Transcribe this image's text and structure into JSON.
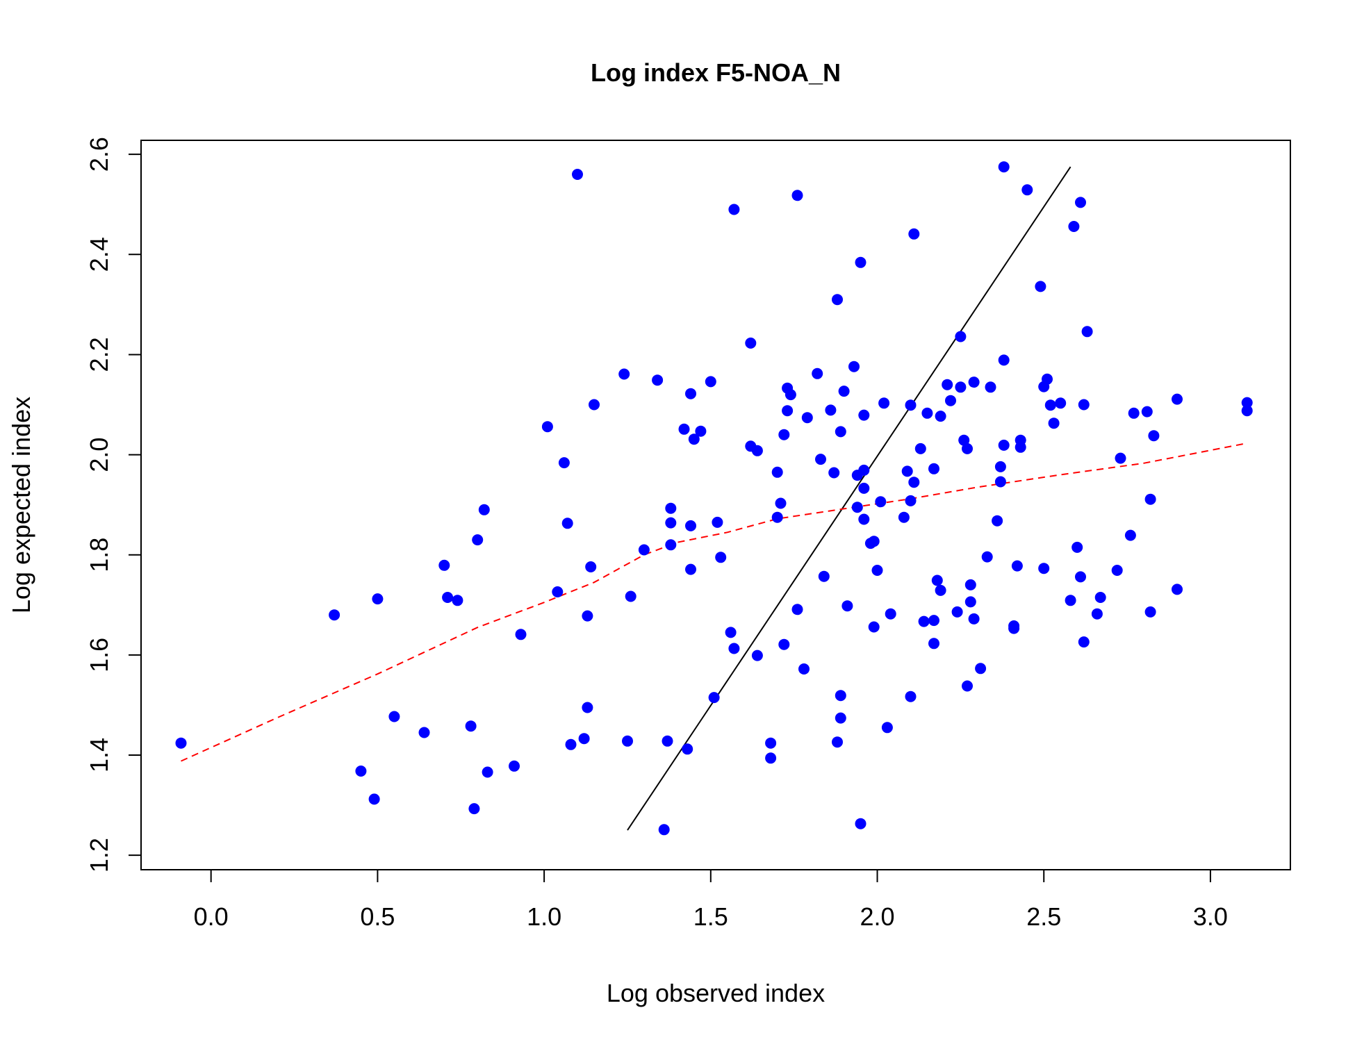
{
  "chart_data": {
    "type": "scatter",
    "title": "Log index F5-NOA_N",
    "xlabel": "Log observed index",
    "ylabel": "Log expected index",
    "xlim": [
      -0.21,
      3.24
    ],
    "ylim": [
      1.171,
      2.628
    ],
    "xticks": [
      0.0,
      0.5,
      1.0,
      1.5,
      2.0,
      2.5,
      3.0
    ],
    "xtick_labels": [
      "0.0",
      "0.5",
      "1.0",
      "1.5",
      "2.0",
      "2.5",
      "3.0"
    ],
    "yticks": [
      1.2,
      1.4,
      1.6,
      1.8,
      2.0,
      2.2,
      2.4,
      2.6
    ],
    "ytick_labels": [
      "1.2",
      "1.4",
      "1.6",
      "1.8",
      "2.0",
      "2.2",
      "2.4",
      "2.6"
    ],
    "grid": false,
    "point_color": "#0000ff",
    "series": [
      {
        "type": "scatter",
        "points": [
          [
            -0.09,
            1.424
          ],
          [
            0.37,
            1.68
          ],
          [
            0.45,
            1.368
          ],
          [
            0.49,
            1.312
          ],
          [
            0.5,
            1.712
          ],
          [
            0.55,
            1.477
          ],
          [
            0.64,
            1.445
          ],
          [
            0.7,
            1.779
          ],
          [
            0.71,
            1.715
          ],
          [
            0.74,
            1.709
          ],
          [
            0.78,
            1.458
          ],
          [
            0.79,
            1.293
          ],
          [
            0.8,
            1.83
          ],
          [
            0.82,
            1.89
          ],
          [
            0.83,
            1.366
          ],
          [
            0.91,
            1.378
          ],
          [
            0.93,
            1.641
          ],
          [
            1.01,
            2.056
          ],
          [
            1.04,
            1.726
          ],
          [
            1.06,
            1.984
          ],
          [
            1.07,
            1.863
          ],
          [
            1.08,
            1.421
          ],
          [
            1.1,
            2.56
          ],
          [
            1.12,
            1.433
          ],
          [
            1.13,
            1.678
          ],
          [
            1.13,
            1.495
          ],
          [
            1.14,
            1.776
          ],
          [
            1.15,
            2.1
          ],
          [
            1.24,
            2.161
          ],
          [
            1.25,
            1.428
          ],
          [
            1.26,
            1.717
          ],
          [
            1.3,
            1.81
          ],
          [
            1.34,
            2.149
          ],
          [
            1.36,
            1.251
          ],
          [
            1.37,
            1.428
          ],
          [
            1.38,
            1.893
          ],
          [
            1.38,
            1.864
          ],
          [
            1.38,
            1.82
          ],
          [
            1.42,
            2.051
          ],
          [
            1.43,
            1.412
          ],
          [
            1.44,
            2.122
          ],
          [
            1.44,
            1.771
          ],
          [
            1.44,
            1.858
          ],
          [
            1.45,
            2.031
          ],
          [
            1.47,
            2.047
          ],
          [
            1.5,
            2.146
          ],
          [
            1.51,
            1.515
          ],
          [
            1.52,
            1.865
          ],
          [
            1.53,
            1.795
          ],
          [
            1.56,
            1.645
          ],
          [
            1.57,
            2.49
          ],
          [
            1.57,
            1.613
          ],
          [
            1.62,
            2.223
          ],
          [
            1.62,
            2.017
          ],
          [
            1.64,
            2.008
          ],
          [
            1.64,
            1.599
          ],
          [
            1.68,
            1.394
          ],
          [
            1.68,
            1.424
          ],
          [
            1.7,
            1.965
          ],
          [
            1.7,
            1.875
          ],
          [
            1.71,
            1.903
          ],
          [
            1.72,
            1.621
          ],
          [
            1.72,
            2.04
          ],
          [
            1.73,
            2.133
          ],
          [
            1.73,
            2.088
          ],
          [
            1.74,
            2.12
          ],
          [
            1.76,
            1.691
          ],
          [
            1.76,
            2.518
          ],
          [
            1.78,
            1.572
          ],
          [
            1.79,
            2.074
          ],
          [
            1.82,
            2.162
          ],
          [
            1.83,
            1.991
          ],
          [
            1.84,
            1.757
          ],
          [
            1.86,
            2.089
          ],
          [
            1.87,
            1.964
          ],
          [
            1.88,
            2.31
          ],
          [
            1.88,
            1.426
          ],
          [
            1.89,
            1.474
          ],
          [
            1.89,
            1.519
          ],
          [
            1.89,
            2.046
          ],
          [
            1.9,
            2.127
          ],
          [
            1.91,
            1.698
          ],
          [
            1.93,
            2.176
          ],
          [
            1.94,
            1.895
          ],
          [
            1.94,
            1.959
          ],
          [
            1.95,
            2.384
          ],
          [
            1.95,
            1.263
          ],
          [
            1.96,
            1.933
          ],
          [
            1.96,
            1.969
          ],
          [
            1.96,
            1.871
          ],
          [
            1.96,
            2.079
          ],
          [
            1.98,
            1.823
          ],
          [
            1.99,
            1.827
          ],
          [
            1.99,
            1.656
          ],
          [
            2.0,
            1.769
          ],
          [
            2.01,
            1.906
          ],
          [
            2.02,
            2.103
          ],
          [
            2.03,
            1.455
          ],
          [
            2.04,
            1.682
          ],
          [
            2.08,
            1.875
          ],
          [
            2.09,
            1.967
          ],
          [
            2.1,
            2.099
          ],
          [
            2.1,
            1.908
          ],
          [
            2.1,
            1.517
          ],
          [
            2.11,
            2.441
          ],
          [
            2.11,
            1.945
          ],
          [
            2.13,
            2.012
          ],
          [
            2.14,
            1.667
          ],
          [
            2.15,
            2.083
          ],
          [
            2.17,
            1.669
          ],
          [
            2.17,
            1.972
          ],
          [
            2.17,
            1.623
          ],
          [
            2.18,
            1.749
          ],
          [
            2.19,
            1.729
          ],
          [
            2.19,
            2.077
          ],
          [
            2.21,
            2.14
          ],
          [
            2.22,
            2.108
          ],
          [
            2.24,
            1.686
          ],
          [
            2.25,
            2.236
          ],
          [
            2.25,
            2.135
          ],
          [
            2.26,
            2.029
          ],
          [
            2.27,
            2.012
          ],
          [
            2.27,
            1.538
          ],
          [
            2.28,
            1.74
          ],
          [
            2.28,
            1.706
          ],
          [
            2.29,
            2.145
          ],
          [
            2.29,
            1.672
          ],
          [
            2.31,
            1.573
          ],
          [
            2.33,
            1.796
          ],
          [
            2.34,
            2.135
          ],
          [
            2.36,
            1.868
          ],
          [
            2.37,
            1.976
          ],
          [
            2.37,
            1.946
          ],
          [
            2.38,
            2.575
          ],
          [
            2.38,
            2.189
          ],
          [
            2.38,
            2.019
          ],
          [
            2.41,
            1.653
          ],
          [
            2.41,
            1.658
          ],
          [
            2.42,
            1.778
          ],
          [
            2.43,
            2.015
          ],
          [
            2.43,
            2.029
          ],
          [
            2.45,
            2.529
          ],
          [
            2.49,
            2.336
          ],
          [
            2.5,
            2.136
          ],
          [
            2.5,
            1.773
          ],
          [
            2.51,
            2.151
          ],
          [
            2.52,
            2.099
          ],
          [
            2.53,
            2.063
          ],
          [
            2.55,
            2.103
          ],
          [
            2.58,
            1.709
          ],
          [
            2.59,
            2.456
          ],
          [
            2.6,
            1.815
          ],
          [
            2.61,
            1.756
          ],
          [
            2.61,
            2.504
          ],
          [
            2.62,
            1.626
          ],
          [
            2.62,
            2.1
          ],
          [
            2.63,
            2.246
          ],
          [
            2.66,
            1.682
          ],
          [
            2.67,
            1.715
          ],
          [
            2.72,
            1.769
          ],
          [
            2.73,
            1.993
          ],
          [
            2.76,
            1.839
          ],
          [
            2.77,
            2.083
          ],
          [
            2.81,
            2.086
          ],
          [
            2.82,
            1.686
          ],
          [
            2.82,
            1.911
          ],
          [
            2.83,
            2.038
          ],
          [
            2.9,
            2.111
          ],
          [
            2.9,
            1.731
          ],
          [
            3.11,
            2.104
          ],
          [
            3.11,
            2.088
          ]
        ]
      },
      {
        "type": "line",
        "style": "solid",
        "color": "#000000",
        "points": [
          [
            1.25,
            1.25
          ],
          [
            2.58,
            2.575
          ]
        ]
      },
      {
        "type": "line",
        "style": "dashed",
        "color": "#ff0000",
        "points": [
          [
            -0.09,
            1.388
          ],
          [
            0.2,
            1.475
          ],
          [
            0.5,
            1.562
          ],
          [
            0.8,
            1.655
          ],
          [
            1.0,
            1.705
          ],
          [
            1.15,
            1.745
          ],
          [
            1.3,
            1.8
          ],
          [
            1.4,
            1.825
          ],
          [
            1.55,
            1.845
          ],
          [
            1.7,
            1.872
          ],
          [
            1.9,
            1.892
          ],
          [
            2.1,
            1.912
          ],
          [
            2.3,
            1.935
          ],
          [
            2.55,
            1.96
          ],
          [
            2.8,
            1.983
          ],
          [
            3.11,
            2.023
          ]
        ]
      }
    ]
  }
}
